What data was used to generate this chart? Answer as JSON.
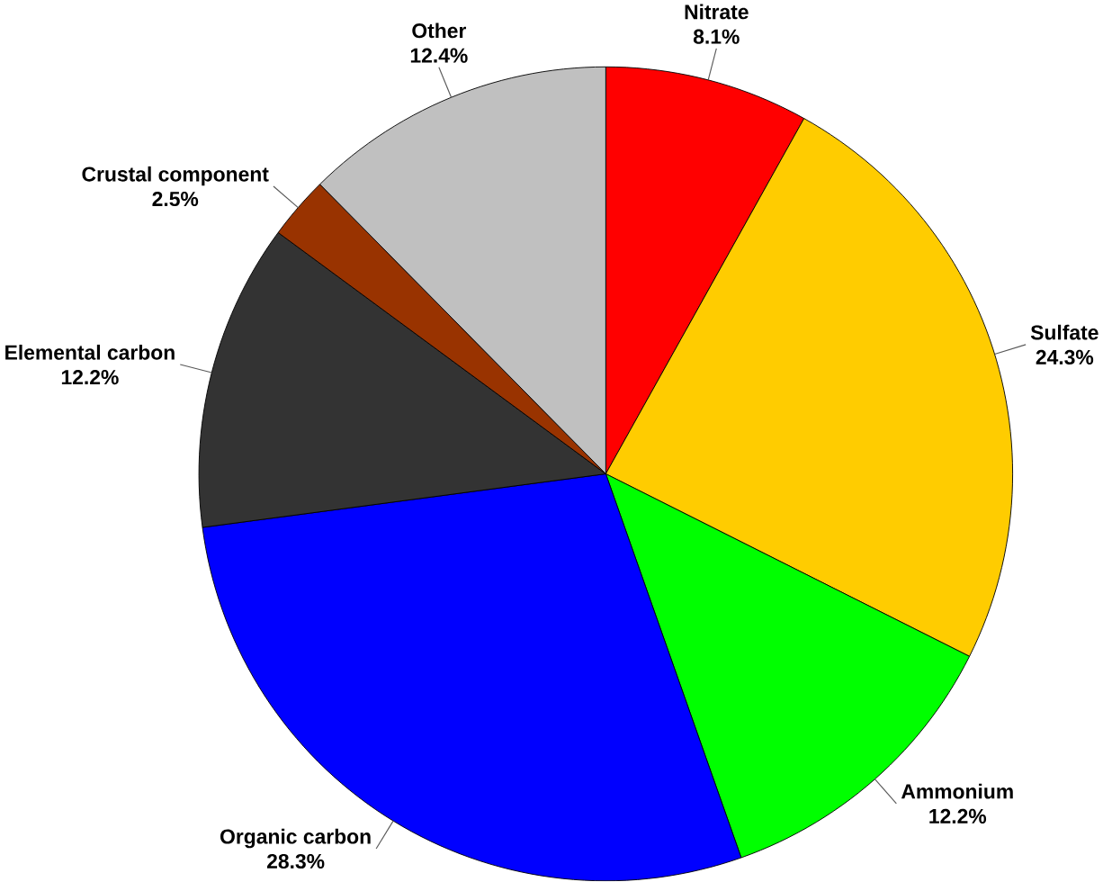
{
  "chart_data": {
    "type": "pie",
    "categories": [
      "Nitrate",
      "Sulfate",
      "Ammonium",
      "Organic carbon",
      "Elemental carbon",
      "Crustal component",
      "Other"
    ],
    "values": [
      8.1,
      24.3,
      12.2,
      28.3,
      12.2,
      2.5,
      12.4
    ],
    "value_labels": [
      "8.1%",
      "24.3%",
      "12.2%",
      "28.3%",
      "12.2%",
      "2.5%",
      "12.4%"
    ],
    "colors": [
      "#ff0000",
      "#ffcc00",
      "#00ff00",
      "#0000ff",
      "#333333",
      "#993300",
      "#c0c0c0"
    ]
  }
}
